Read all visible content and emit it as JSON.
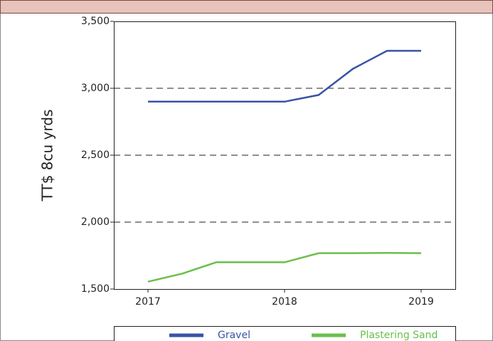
{
  "chart_data": {
    "type": "line",
    "y_label": "TT$ 8cu yrds",
    "x": [
      2017,
      2017.25,
      2017.5,
      2017.75,
      2018,
      2018.25,
      2018.5,
      2018.75,
      2019
    ],
    "xlim": [
      2016.75,
      2019.25
    ],
    "xticks": [
      2017,
      2018,
      2019
    ],
    "ylim": [
      1500,
      3500
    ],
    "yticks": [
      {
        "value": 1500,
        "label": "1,500"
      },
      {
        "value": 2000,
        "label": "2,000"
      },
      {
        "value": 2500,
        "label": "2,500"
      },
      {
        "value": 3000,
        "label": "3,000"
      },
      {
        "value": 3500,
        "label": "3,500"
      }
    ],
    "grid": true,
    "legend": "bottom",
    "series": [
      {
        "name": "Gravel",
        "color": "#3a53a4",
        "values": [
          2900,
          2900,
          2900,
          2900,
          2900,
          2950,
          3145,
          3280,
          3280
        ]
      },
      {
        "name": "Plastering Sand",
        "color": "#6abf4b",
        "values": [
          1555,
          1615,
          1700,
          1700,
          1700,
          1768,
          1768,
          1770,
          1768
        ]
      }
    ]
  }
}
